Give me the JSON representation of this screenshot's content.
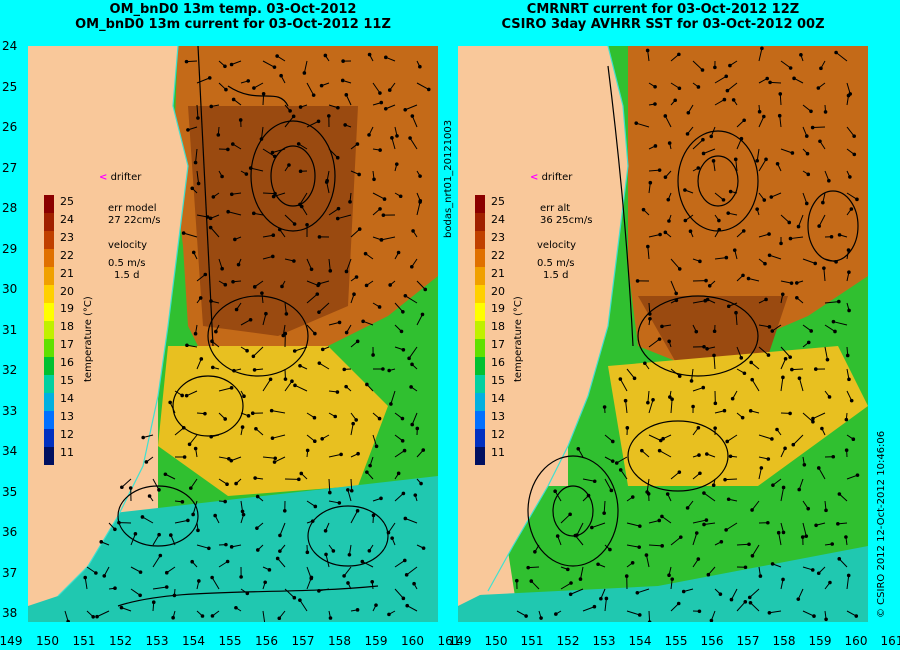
{
  "left_panel": {
    "title_line1": "OM_bnD0 13m temp. 03-Oct-2012",
    "title_line2": "OM_bnD0 13m current for 03-Oct-2012 11Z",
    "err_label": "err model",
    "err_value": "27 22cm/s"
  },
  "right_panel": {
    "title_line1": "CMRNRT current for 03-Oct-2012 12Z",
    "title_line2": "CSIRO 3day AVHRR SST for 03-Oct-2012 00Z",
    "err_label": "err alt",
    "err_value": "36 25cm/s"
  },
  "drifter_label": "drifter",
  "velocity_label": "velocity",
  "velocity_scale": "0.5 m/s",
  "velocity_time": "1.5 d",
  "colorbar": {
    "ticks": [
      "25",
      "24",
      "23",
      "22",
      "21",
      "20",
      "19",
      "18",
      "17",
      "16",
      "15",
      "14",
      "13",
      "12",
      "11"
    ],
    "unit_label": "temperature (°C)",
    "colors": [
      "#8b0000",
      "#a02000",
      "#c04000",
      "#e07000",
      "#f0a000",
      "#ffd000",
      "#ffff00",
      "#c0f000",
      "#60e000",
      "#00c030",
      "#00d0a0",
      "#00b0e0",
      "#0070ff",
      "#0030c0",
      "#001060"
    ]
  },
  "lat_ticks": [
    "24",
    "25",
    "26",
    "27",
    "28",
    "29",
    "30",
    "31",
    "32",
    "33",
    "34",
    "35",
    "36",
    "37",
    "38"
  ],
  "lon_ticks": [
    "149",
    "150",
    "151",
    "152",
    "153",
    "154",
    "155",
    "156",
    "157",
    "158",
    "159",
    "160",
    "161"
  ],
  "side_label_mid": "bodas_nrt01_20121003",
  "side_label_right": "© CSIRO 2012   12-Oct-2012 10:46:06",
  "colors": {
    "background": "#00ffff",
    "land": "#f9c89a",
    "warm": "#c46a18",
    "mid": "#e8b020",
    "cool": "#30c030",
    "cold": "#20c8b0"
  }
}
